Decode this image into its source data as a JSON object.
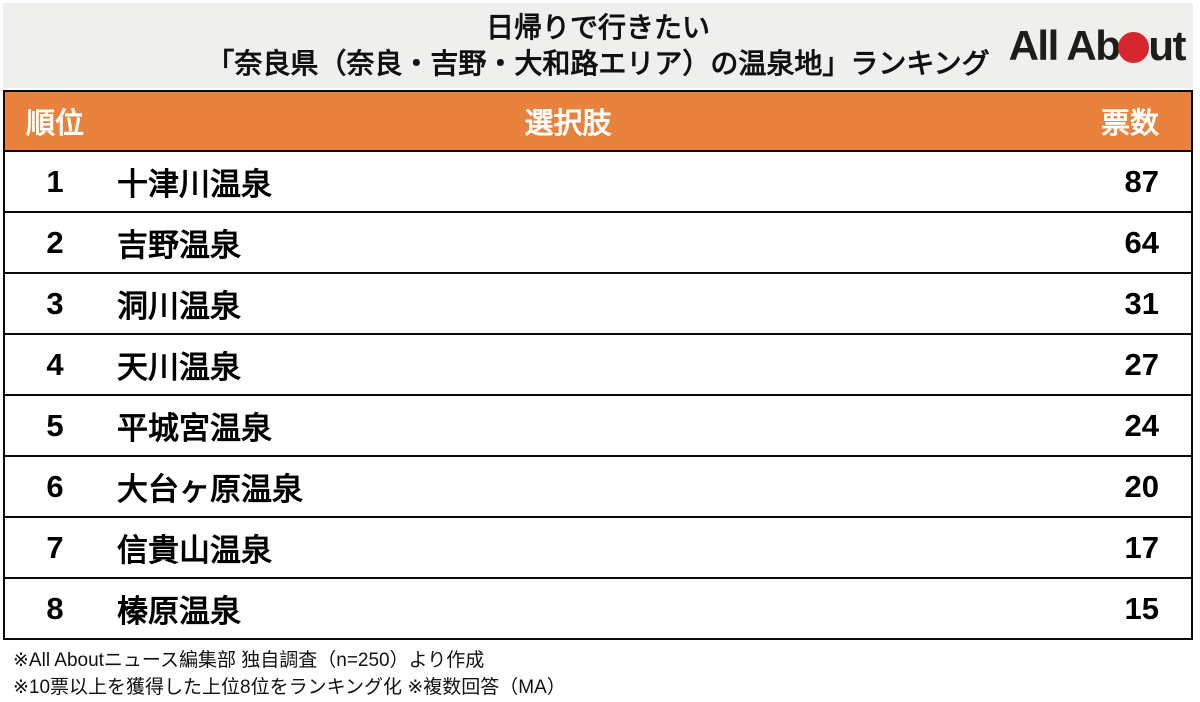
{
  "header": {
    "title_line1": "日帰りで行きたい",
    "title_line2": "「奈良県（奈良・吉野・大和路エリア）の温泉地」ランキング",
    "logo": {
      "alt": "All About",
      "text_left": "All Ab",
      "text_right": "ut"
    }
  },
  "chart_data": {
    "type": "table",
    "title": "日帰りで行きたい「奈良県（奈良・吉野・大和路エリア）の温泉地」ランキング",
    "columns": {
      "rank": "順位",
      "choice": "選択肢",
      "votes": "票数"
    },
    "rows": [
      {
        "rank": 1,
        "choice": "十津川温泉",
        "votes": 87
      },
      {
        "rank": 2,
        "choice": "吉野温泉",
        "votes": 64
      },
      {
        "rank": 3,
        "choice": "洞川温泉",
        "votes": 31
      },
      {
        "rank": 4,
        "choice": "天川温泉",
        "votes": 27
      },
      {
        "rank": 5,
        "choice": "平城宮温泉",
        "votes": 24
      },
      {
        "rank": 6,
        "choice": "大台ヶ原温泉",
        "votes": 20
      },
      {
        "rank": 7,
        "choice": "信貴山温泉",
        "votes": 17
      },
      {
        "rank": 8,
        "choice": "榛原温泉",
        "votes": 15
      }
    ],
    "notes": [
      "※All Aboutニュース編集部 独自調査（n=250）より作成",
      "※10票以上を獲得した上位8位をランキング化 ※複数回答（MA）"
    ]
  },
  "footer": {
    "note1": "※All Aboutニュース編集部 独自調査（n=250）より作成",
    "note2": "※10票以上を獲得した上位8位をランキング化 ※複数回答（MA）"
  },
  "colors": {
    "accent_orange": "#e8823c",
    "title_bg": "#efefee",
    "logo_red": "#d7272e",
    "border_black": "#0a0a0a"
  }
}
